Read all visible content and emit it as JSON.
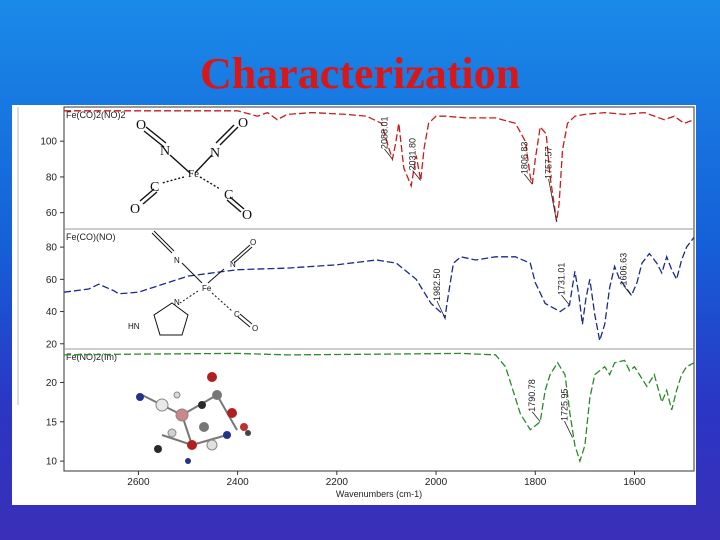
{
  "slide": {
    "title": "Characterization"
  },
  "chart_data": {
    "type": "line",
    "xlabel": "Wavenumbers (cm-1)",
    "xlim": [
      2750,
      1480
    ],
    "x_ticks": [
      "2600",
      "2400",
      "2200",
      "2000",
      "1800",
      "1600"
    ],
    "x_tick_values": [
      2600,
      2400,
      2200,
      2000,
      1800,
      1600
    ],
    "panels": [
      {
        "name": "Fe(CO)2(NO)2",
        "color": "#cc1a1a",
        "ylim": [
          52,
          118
        ],
        "y_ticks": [
          60,
          80,
          100
        ],
        "series": {
          "x": [
            2750,
            2400,
            2360,
            2340,
            2320,
            2300,
            2250,
            2180,
            2140,
            2110,
            2095,
            2088,
            2082,
            2075,
            2065,
            2050,
            2040,
            2031,
            2024,
            2015,
            2000,
            1980,
            1940,
            1880,
            1840,
            1820,
            1810,
            1806,
            1800,
            1790,
            1778,
            1770,
            1762,
            1757,
            1752,
            1745,
            1735,
            1720,
            1700,
            1660,
            1620,
            1580,
            1540,
            1520,
            1500,
            1480
          ],
          "y": [
            117,
            117,
            114,
            116,
            112,
            115,
            116,
            115,
            114,
            110,
            96,
            90,
            98,
            110,
            85,
            75,
            92,
            78,
            96,
            110,
            114,
            114,
            113,
            113,
            110,
            100,
            80,
            76,
            90,
            108,
            104,
            80,
            65,
            55,
            65,
            95,
            110,
            114,
            115,
            116,
            115,
            116,
            112,
            114,
            110,
            112
          ]
        },
        "peaks": [
          {
            "label": "2088.01",
            "x": 2088,
            "y": 90
          },
          {
            "label": "2031.80",
            "x": 2031,
            "y": 78
          },
          {
            "label": "1806.83",
            "x": 1806,
            "y": 76
          },
          {
            "label": "1757.57",
            "x": 1757,
            "y": 55
          }
        ]
      },
      {
        "name": "Fe(CO)(NO)",
        "color": "#1a2a8c",
        "ylim": [
          18,
          90
        ],
        "y_ticks": [
          20,
          40,
          60,
          80
        ],
        "series": {
          "x": [
            2750,
            2700,
            2680,
            2650,
            2640,
            2600,
            2500,
            2400,
            2300,
            2200,
            2120,
            2080,
            2040,
            2010,
            1985,
            1982,
            1978,
            1965,
            1950,
            1920,
            1880,
            1840,
            1810,
            1800,
            1780,
            1750,
            1731,
            1720,
            1712,
            1705,
            1698,
            1690,
            1680,
            1670,
            1660,
            1650,
            1640,
            1630,
            1620,
            1606,
            1595,
            1585,
            1570,
            1555,
            1545,
            1535,
            1525,
            1515,
            1505,
            1495,
            1480
          ],
          "y": [
            52,
            54,
            57,
            53,
            51,
            52,
            62,
            66,
            67,
            69,
            72,
            70,
            60,
            45,
            38,
            36,
            45,
            70,
            74,
            72,
            74,
            74,
            70,
            58,
            45,
            40,
            44,
            65,
            50,
            32,
            48,
            60,
            38,
            22,
            32,
            55,
            68,
            60,
            56,
            50,
            58,
            70,
            76,
            70,
            64,
            74,
            66,
            60,
            72,
            80,
            86
          ]
        },
        "peaks": [
          {
            "label": "1982.50",
            "x": 1982,
            "y": 36
          },
          {
            "label": "1731.01",
            "x": 1731,
            "y": 44
          },
          {
            "label": "1606.63",
            "x": 1606,
            "y": 50
          }
        ]
      },
      {
        "name": "Fe(NO)2(Im)",
        "color": "#2a8a2a",
        "ylim": [
          9,
          24
        ],
        "y_ticks": [
          10,
          15,
          20
        ],
        "series": {
          "x": [
            2750,
            2600,
            2400,
            2300,
            2100,
            1950,
            1880,
            1860,
            1830,
            1810,
            1790,
            1780,
            1770,
            1755,
            1740,
            1730,
            1720,
            1710,
            1700,
            1690,
            1680,
            1660,
            1650,
            1640,
            1620,
            1610,
            1600,
            1590,
            1575,
            1560,
            1545,
            1535,
            1525,
            1515,
            1505,
            1495,
            1480
          ],
          "y": [
            23.5,
            23.6,
            23.7,
            23.5,
            23.6,
            23.7,
            23.5,
            22,
            16,
            14,
            15,
            19,
            21,
            22.5,
            21,
            16,
            12,
            10,
            12,
            18,
            21,
            22,
            21,
            22.5,
            22.8,
            21.5,
            22,
            21,
            19.5,
            21,
            17.5,
            19,
            16.5,
            19,
            21,
            22,
            22.5
          ]
        },
        "peaks": [
          {
            "label": "1790.78",
            "x": 1790,
            "y": 15
          },
          {
            "label": "1725.95",
            "x": 1725,
            "y": 13
          }
        ]
      }
    ]
  }
}
